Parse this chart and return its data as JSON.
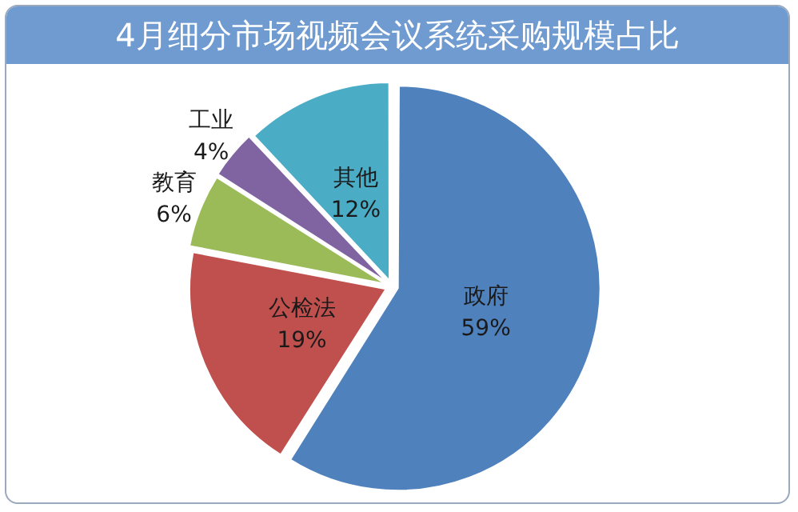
{
  "chart_data": {
    "type": "pie",
    "title": "4月细分市场视频会议系统采购规模占比",
    "categories": [
      "政府",
      "公检法",
      "教育",
      "工业",
      "其他"
    ],
    "values": [
      59,
      19,
      6,
      4,
      12
    ],
    "value_labels": [
      "59%",
      "19%",
      "6%",
      "4%",
      "12%"
    ],
    "colors": [
      "#4f81bd",
      "#c0504d",
      "#9bbb59",
      "#8064a2",
      "#4bacc6"
    ],
    "legend": false
  }
}
